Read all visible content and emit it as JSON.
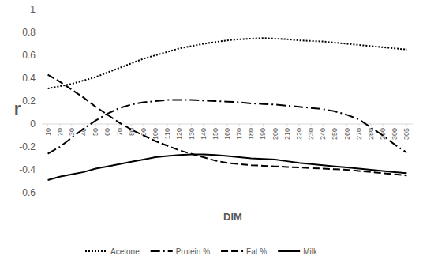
{
  "chart_data": {
    "type": "line",
    "y_label": "r",
    "x_label": "DIM",
    "categories": [
      10,
      20,
      30,
      40,
      50,
      60,
      70,
      80,
      90,
      100,
      110,
      120,
      130,
      140,
      150,
      160,
      170,
      180,
      190,
      200,
      210,
      220,
      230,
      240,
      250,
      260,
      270,
      280,
      290,
      300,
      305
    ],
    "ylim": [
      -0.6,
      1
    ],
    "yticks": [
      -0.6,
      -0.4,
      -0.2,
      0,
      0.2,
      0.4,
      0.6,
      0.8,
      1
    ],
    "grid": false,
    "legend": "bottom",
    "series": [
      {
        "name": "Acetone",
        "color": "#000000",
        "line_style": "dotted",
        "values": [
          0.31,
          0.33,
          0.35,
          0.38,
          0.41,
          0.45,
          0.49,
          0.53,
          0.57,
          0.6,
          0.63,
          0.66,
          0.68,
          0.7,
          0.715,
          0.73,
          0.74,
          0.745,
          0.75,
          0.745,
          0.74,
          0.73,
          0.725,
          0.72,
          0.71,
          0.7,
          0.69,
          0.68,
          0.67,
          0.66,
          0.65
        ]
      },
      {
        "name": "Protein %",
        "color": "#000000",
        "line_style": "dashdot",
        "values": [
          -0.26,
          -0.2,
          -0.12,
          -0.04,
          0.03,
          0.09,
          0.14,
          0.17,
          0.19,
          0.2,
          0.21,
          0.21,
          0.21,
          0.205,
          0.2,
          0.195,
          0.19,
          0.18,
          0.175,
          0.17,
          0.16,
          0.15,
          0.14,
          0.13,
          0.11,
          0.08,
          0.04,
          -0.03,
          -0.1,
          -0.18,
          -0.25
        ]
      },
      {
        "name": "Fat %",
        "color": "#000000",
        "line_style": "dashed",
        "values": [
          0.43,
          0.37,
          0.3,
          0.23,
          0.15,
          0.08,
          0.01,
          -0.05,
          -0.1,
          -0.15,
          -0.19,
          -0.23,
          -0.26,
          -0.29,
          -0.32,
          -0.34,
          -0.35,
          -0.36,
          -0.365,
          -0.37,
          -0.375,
          -0.38,
          -0.385,
          -0.39,
          -0.395,
          -0.4,
          -0.41,
          -0.42,
          -0.43,
          -0.44,
          -0.45
        ]
      },
      {
        "name": "Milk",
        "color": "#000000",
        "line_style": "solid",
        "values": [
          -0.49,
          -0.46,
          -0.44,
          -0.42,
          -0.39,
          -0.37,
          -0.35,
          -0.33,
          -0.31,
          -0.29,
          -0.28,
          -0.27,
          -0.265,
          -0.265,
          -0.27,
          -0.28,
          -0.29,
          -0.3,
          -0.305,
          -0.31,
          -0.325,
          -0.34,
          -0.35,
          -0.36,
          -0.37,
          -0.38,
          -0.39,
          -0.4,
          -0.41,
          -0.42,
          -0.43
        ]
      }
    ]
  }
}
